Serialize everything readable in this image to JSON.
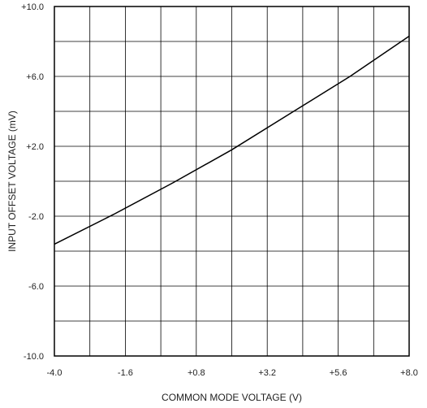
{
  "chart_data": {
    "type": "line",
    "title": "",
    "xlabel": "COMMON MODE VOLTAGE (V)",
    "ylabel": "INPUT OFFSET VOLTAGE (mV)",
    "xlim": [
      -4.0,
      8.0
    ],
    "ylim": [
      -10.0,
      10.0
    ],
    "x_tick_labels": [
      "-4.0",
      "-1.6",
      "+0.8",
      "+3.2",
      "+5.6",
      "+8.0"
    ],
    "y_tick_labels": [
      "+10.0",
      "+6.0",
      "+2.0",
      "-2.0",
      "-6.0",
      "-10.0"
    ],
    "grid": true,
    "line_color": "#000000",
    "series": [
      {
        "x": [
          -4.0,
          -2.0,
          0.0,
          2.0,
          4.0,
          6.0,
          8.0
        ],
        "y": [
          -3.6,
          -1.9,
          -0.1,
          1.8,
          3.9,
          6.0,
          8.3
        ]
      }
    ]
  }
}
